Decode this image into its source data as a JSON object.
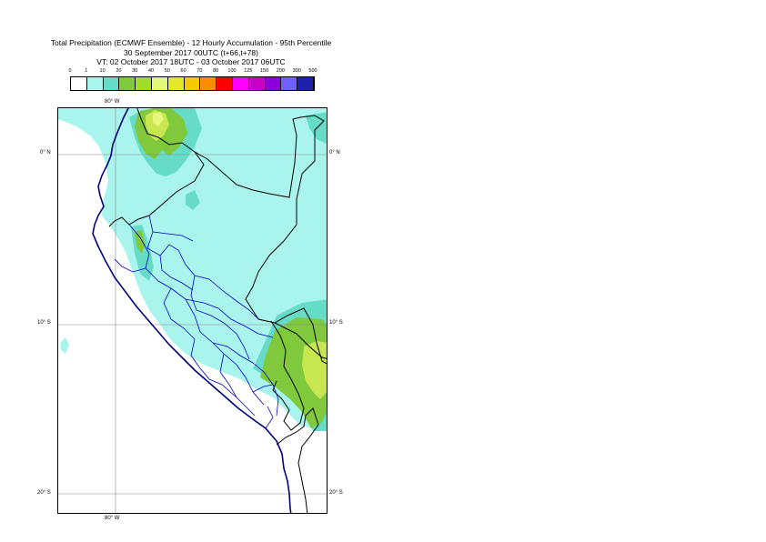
{
  "title": {
    "line1": "Total Precipitation (ECMWF Ensemble) - 12 Hourly Accumulation - 95th Percentile",
    "line2": "30 September 2017 00UTC (t+66,t+78)",
    "line3": "VT: 02 October 2017 18UTC - 03 October 2017 06UTC"
  },
  "legend": {
    "ticks": [
      "0",
      "1",
      "10",
      "20",
      "30",
      "40",
      "50",
      "60",
      "70",
      "80",
      "100",
      "125",
      "150",
      "200",
      "300",
      "500"
    ],
    "colors": [
      "#ffffff",
      "#aaf4ee",
      "#66dcc8",
      "#80c83c",
      "#a0dc28",
      "#e6f87a",
      "#e6e628",
      "#f5c800",
      "#ff8c00",
      "#ff0000",
      "#ff00ff",
      "#c800c8",
      "#8c00dc",
      "#7060ff",
      "#2020b0",
      "#0a0a50"
    ]
  },
  "map": {
    "lon_label_top": "80° W",
    "lon_label_bottom": "80° W",
    "lat_labels": [
      "0° N",
      "10° S",
      "20° S"
    ],
    "colors": {
      "light": "#aaf4ee",
      "medium": "#66dcc8",
      "green": "#80c83c",
      "yellowgreen": "#c8e650",
      "yellow": "#e6f87a",
      "coast": "#000080",
      "border": "#000000",
      "admin": "#0000cc",
      "grid": "#888888"
    }
  }
}
